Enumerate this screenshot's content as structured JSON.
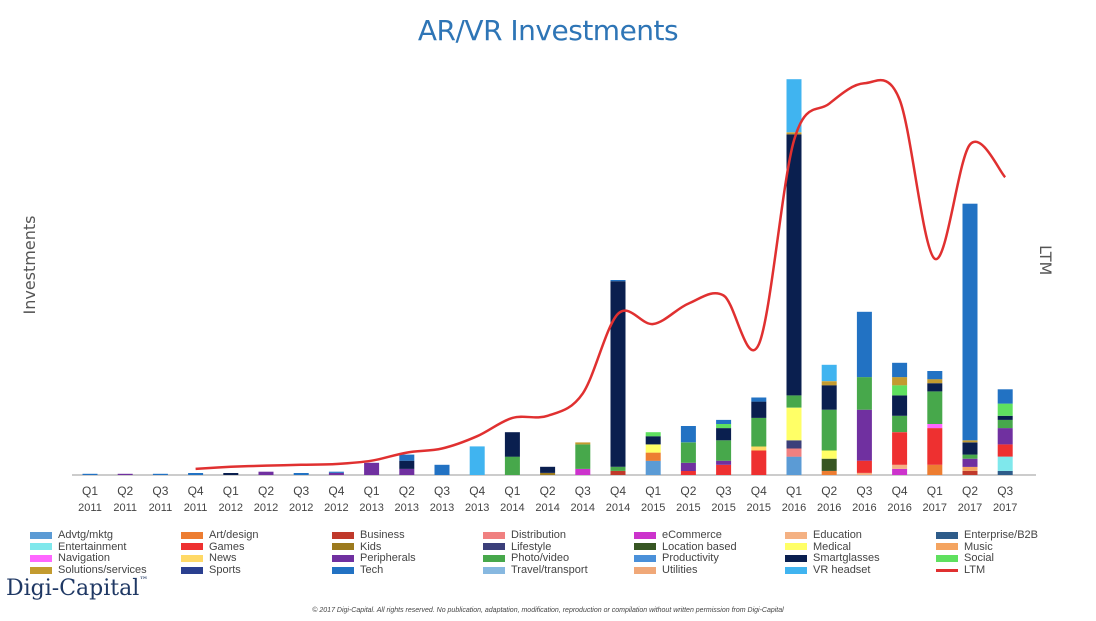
{
  "chart_data": {
    "type": "bar",
    "stacked": true,
    "title": "AR/VR Investments",
    "ylabel": "Investments",
    "y2label": "LTM",
    "ylim": [
      0,
      100
    ],
    "y2lim": [
      0,
      100
    ],
    "grid": false,
    "legend_position": "bottom",
    "brand": "Digi-Capital",
    "brand_mark": "™",
    "copyright": "© 2017 Digi-Capital. All rights reserved. No publication, adaptation, modification, reproduction or compilation without written permission from Digi-Capital",
    "categories": [
      {
        "q": "Q1",
        "y": "2011"
      },
      {
        "q": "Q2",
        "y": "2011"
      },
      {
        "q": "Q3",
        "y": "2011"
      },
      {
        "q": "Q4",
        "y": "2011"
      },
      {
        "q": "Q1",
        "y": "2012"
      },
      {
        "q": "Q2",
        "y": "2012"
      },
      {
        "q": "Q3",
        "y": "2012"
      },
      {
        "q": "Q4",
        "y": "2012"
      },
      {
        "q": "Q1",
        "y": "2013"
      },
      {
        "q": "Q2",
        "y": "2013"
      },
      {
        "q": "Q3",
        "y": "2013"
      },
      {
        "q": "Q4",
        "y": "2013"
      },
      {
        "q": "Q1",
        "y": "2014"
      },
      {
        "q": "Q2",
        "y": "2014"
      },
      {
        "q": "Q3",
        "y": "2014"
      },
      {
        "q": "Q4",
        "y": "2014"
      },
      {
        "q": "Q1",
        "y": "2015"
      },
      {
        "q": "Q2",
        "y": "2015"
      },
      {
        "q": "Q3",
        "y": "2015"
      },
      {
        "q": "Q4",
        "y": "2015"
      },
      {
        "q": "Q1",
        "y": "2016"
      },
      {
        "q": "Q2",
        "y": "2016"
      },
      {
        "q": "Q3",
        "y": "2016"
      },
      {
        "q": "Q4",
        "y": "2016"
      },
      {
        "q": "Q1",
        "y": "2017"
      },
      {
        "q": "Q2",
        "y": "2017"
      },
      {
        "q": "Q3",
        "y": "2017"
      }
    ],
    "series": [
      {
        "name": "Advtg/mktg",
        "color": "#5b9bd5",
        "values": [
          0,
          0,
          0,
          0,
          0,
          0,
          0,
          0,
          0,
          0,
          0,
          0,
          0,
          0,
          0,
          0,
          3.5,
          0,
          0,
          0,
          4.5,
          0,
          0,
          0,
          0,
          0,
          0
        ]
      },
      {
        "name": "Art/design",
        "color": "#ed7d31",
        "values": [
          0,
          0,
          0,
          0,
          0,
          0,
          0,
          0,
          0,
          0,
          0,
          0,
          0,
          0,
          0,
          0,
          2,
          0,
          0,
          0,
          0,
          1,
          0,
          0,
          2.5,
          0,
          0
        ]
      },
      {
        "name": "Business",
        "color": "#c0392b",
        "values": [
          0,
          0,
          0,
          0,
          0,
          0,
          0,
          0,
          0,
          0,
          0,
          0,
          0,
          0,
          0,
          1,
          0,
          0,
          0,
          0,
          0,
          0,
          0,
          0,
          0,
          1,
          0
        ]
      },
      {
        "name": "Distribution",
        "color": "#f08080",
        "values": [
          0,
          0,
          0,
          0,
          0,
          0,
          0,
          0,
          0,
          0,
          0,
          0,
          0,
          0,
          0,
          0,
          0,
          0,
          0,
          0,
          2,
          0,
          0,
          0,
          0,
          0,
          0
        ]
      },
      {
        "name": "eCommerce",
        "color": "#cc33cc",
        "values": [
          0,
          0,
          0,
          0,
          0,
          0,
          0,
          0,
          0,
          0,
          0,
          0,
          0,
          0,
          1.5,
          0,
          0,
          0,
          0,
          0,
          0,
          0,
          0,
          1.5,
          0,
          0,
          0
        ]
      },
      {
        "name": "Education",
        "color": "#f4b183",
        "values": [
          0,
          0,
          0,
          0,
          0,
          0,
          0,
          0,
          0,
          0,
          0,
          0,
          0,
          0,
          0,
          0,
          0,
          0,
          0,
          0,
          0,
          0,
          0.5,
          1,
          0,
          0,
          0
        ]
      },
      {
        "name": "Enterprise/B2B",
        "color": "#2e5c8a",
        "values": [
          0,
          0,
          0,
          0,
          0,
          0,
          0,
          0,
          0,
          0,
          0,
          0,
          0,
          0,
          0,
          0,
          0,
          0,
          0,
          0,
          0,
          0,
          0,
          0,
          0,
          0,
          1
        ]
      },
      {
        "name": "Entertainment",
        "color": "#7fe8ec",
        "values": [
          0,
          0,
          0,
          0,
          0,
          0,
          0,
          0,
          0,
          0,
          0,
          0,
          0,
          0,
          0,
          0,
          0,
          0,
          0,
          0,
          0,
          0,
          0,
          0,
          0,
          0,
          3.5
        ]
      },
      {
        "name": "Games",
        "color": "#ee3030",
        "values": [
          0,
          0,
          0,
          0,
          0,
          0,
          0,
          0,
          0,
          0,
          0,
          0,
          0,
          0,
          0,
          0,
          0,
          1,
          2.5,
          6,
          0,
          0,
          3,
          8,
          9,
          0,
          3
        ]
      },
      {
        "name": "Kids",
        "color": "#9c7a1e",
        "values": [
          0,
          0,
          0,
          0,
          0,
          0,
          0,
          0,
          0,
          0,
          0,
          0,
          0,
          0.5,
          0,
          0,
          0,
          0,
          0,
          0,
          0,
          0,
          0,
          0,
          0,
          0,
          0
        ]
      },
      {
        "name": "Lifestyle",
        "color": "#3b3f7a",
        "values": [
          0,
          0,
          0,
          0,
          0,
          0,
          0,
          0,
          0,
          0,
          0,
          0,
          0,
          0,
          0,
          0,
          0,
          0,
          0,
          0,
          2,
          0,
          0,
          0,
          0,
          0,
          0
        ]
      },
      {
        "name": "Location based",
        "color": "#375623",
        "values": [
          0,
          0,
          0,
          0,
          0,
          0,
          0,
          0,
          0,
          0,
          0,
          0,
          0,
          0,
          0,
          0,
          0,
          0,
          0,
          0,
          0,
          3,
          0,
          0,
          0,
          0,
          0
        ]
      },
      {
        "name": "Medical",
        "color": "#ffff66",
        "values": [
          0,
          0,
          0,
          0,
          0,
          0,
          0,
          0,
          0,
          0,
          0,
          0,
          0,
          0,
          0,
          0,
          2,
          0,
          0,
          0,
          8,
          2,
          0,
          0,
          0,
          0,
          0
        ]
      },
      {
        "name": "Music",
        "color": "#f4a460",
        "values": [
          0,
          0,
          0,
          0,
          0,
          0,
          0,
          0,
          0,
          0,
          0,
          0,
          0,
          0,
          0,
          0,
          0,
          0,
          0,
          0,
          0,
          0,
          0,
          0,
          0,
          1,
          0
        ]
      },
      {
        "name": "Navigation",
        "color": "#ff66ff",
        "values": [
          0,
          0,
          0,
          0,
          0,
          0,
          0,
          0,
          0,
          0,
          0,
          0,
          0,
          0,
          0,
          0,
          0,
          0,
          0,
          0,
          0,
          0,
          0,
          0,
          1,
          0,
          0
        ]
      },
      {
        "name": "News",
        "color": "#ffd966",
        "values": [
          0,
          0,
          0,
          0,
          0,
          0,
          0,
          0,
          0,
          0,
          0,
          0,
          0,
          0,
          0,
          0,
          0,
          0,
          0,
          1,
          0,
          0,
          0,
          0,
          0,
          0,
          0
        ]
      },
      {
        "name": "Peripherals",
        "color": "#7030a0",
        "values": [
          0,
          0.3,
          0,
          0,
          0,
          0.8,
          0,
          0.5,
          3,
          1.5,
          0,
          0,
          0,
          0,
          0,
          0,
          0,
          2,
          1,
          0,
          0,
          0,
          12.5,
          0,
          0,
          2,
          4
        ]
      },
      {
        "name": "Photo/video",
        "color": "#47a84b",
        "values": [
          0,
          0,
          0,
          0,
          0,
          0,
          0,
          0,
          0,
          0,
          0,
          0,
          4.5,
          0,
          6,
          1,
          0,
          5,
          5,
          7,
          3,
          10,
          8,
          4,
          8,
          1,
          2
        ]
      },
      {
        "name": "Productivity",
        "color": "#4a90d9",
        "values": [
          0,
          0,
          0,
          0,
          0,
          0,
          0,
          0,
          0,
          0,
          0,
          0,
          0,
          0,
          0,
          0,
          0,
          0,
          0,
          0,
          0,
          0,
          0,
          0,
          0,
          0,
          0
        ]
      },
      {
        "name": "Smartglasses",
        "color": "#0a1f4f",
        "values": [
          0,
          0,
          0,
          0,
          0.5,
          0,
          0,
          0,
          0,
          2,
          0,
          0,
          6,
          1.5,
          0,
          45.5,
          2,
          0,
          3,
          4,
          64,
          6,
          0,
          5,
          2,
          3,
          1
        ]
      },
      {
        "name": "Social",
        "color": "#5fe05f",
        "values": [
          0,
          0,
          0,
          0,
          0,
          0,
          0,
          0,
          0,
          0,
          0,
          0,
          0,
          0,
          0,
          0,
          1,
          0,
          1,
          0,
          0,
          0,
          0,
          2.5,
          0,
          0,
          3
        ]
      },
      {
        "name": "Solutions/services",
        "color": "#c39b2f",
        "values": [
          0,
          0,
          0,
          0,
          0,
          0,
          0,
          0,
          0,
          0,
          0,
          0,
          0,
          0,
          0.5,
          0,
          0,
          0,
          0,
          0,
          0.5,
          1,
          0,
          2,
          1,
          0.5,
          0
        ]
      },
      {
        "name": "Sports",
        "color": "#2a3f8f",
        "values": [
          0,
          0,
          0,
          0,
          0,
          0,
          0,
          0,
          0,
          0,
          0,
          0,
          0,
          0,
          0,
          0,
          0,
          0,
          0,
          0,
          0,
          0,
          0,
          0,
          0,
          0,
          0
        ]
      },
      {
        "name": "Tech",
        "color": "#2272c3",
        "values": [
          0.3,
          0,
          0.3,
          0.5,
          0,
          0,
          0.5,
          0.3,
          0,
          1.5,
          2.5,
          0,
          0,
          0,
          0,
          0.3,
          0,
          4,
          1,
          1,
          0,
          0,
          16,
          3.5,
          2,
          58,
          3.5
        ]
      },
      {
        "name": "Travel/transport",
        "color": "#87b8e0",
        "values": [
          0,
          0,
          0,
          0,
          0,
          0,
          0,
          0,
          0,
          0,
          0,
          0,
          0,
          0,
          0,
          0,
          0,
          0,
          0,
          0,
          0,
          0,
          0,
          0,
          0,
          0,
          0
        ]
      },
      {
        "name": "Utilities",
        "color": "#f0a878",
        "values": [
          0,
          0,
          0,
          0,
          0,
          0,
          0,
          0,
          0,
          0,
          0,
          0,
          0,
          0,
          0,
          0,
          0,
          0,
          0,
          0,
          0,
          0,
          0,
          0,
          0,
          0,
          0
        ]
      },
      {
        "name": "VR headset",
        "color": "#40b4f0",
        "values": [
          0,
          0,
          0,
          0,
          0,
          0,
          0,
          0,
          0,
          0,
          0,
          7,
          0,
          0,
          0,
          0,
          0,
          0,
          0,
          0,
          13,
          4,
          0,
          0,
          0,
          0,
          0
        ]
      }
    ],
    "line": {
      "name": "LTM",
      "color": "#e03030",
      "values": [
        null,
        null,
        null,
        1.5,
        2,
        2.3,
        2.5,
        2.7,
        3.5,
        5.5,
        6.5,
        9.5,
        14,
        14.5,
        20,
        39.5,
        37,
        42,
        44,
        32,
        82,
        91,
        96,
        92,
        53,
        81,
        73
      ]
    }
  }
}
